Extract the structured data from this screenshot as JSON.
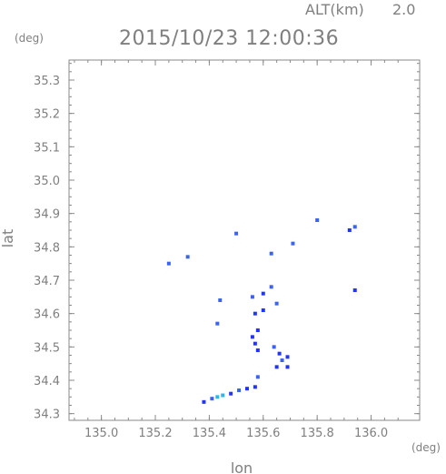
{
  "header": {
    "alt_label": "ALT(km)",
    "alt_value": "2.0",
    "datetime": "2015/10/23 12:00:36"
  },
  "chart_data": {
    "type": "scatter",
    "xlabel": "lon",
    "ylabel": "lat",
    "x_unit": "(deg)",
    "y_unit": "(deg)",
    "xlim": [
      134.88,
      136.18
    ],
    "ylim": [
      34.28,
      35.36
    ],
    "x_ticks": [
      "135.0",
      "135.2",
      "135.4",
      "135.6",
      "135.8",
      "136.0"
    ],
    "y_ticks": [
      "34.3",
      "34.4",
      "34.5",
      "34.6",
      "34.7",
      "34.8",
      "34.9",
      "35.0",
      "35.1",
      "35.2",
      "35.3"
    ],
    "grid": false,
    "colors": {
      "strong": "#2233ff",
      "medium": "#3b62f2",
      "light": "#2fb6e6"
    },
    "points": [
      {
        "x": 135.25,
        "y": 34.75,
        "v": "medium"
      },
      {
        "x": 135.32,
        "y": 34.77,
        "v": "medium"
      },
      {
        "x": 135.5,
        "y": 34.84,
        "v": "medium"
      },
      {
        "x": 135.63,
        "y": 34.78,
        "v": "medium"
      },
      {
        "x": 135.71,
        "y": 34.81,
        "v": "medium"
      },
      {
        "x": 135.8,
        "y": 34.88,
        "v": "medium"
      },
      {
        "x": 135.92,
        "y": 34.85,
        "v": "strong"
      },
      {
        "x": 135.94,
        "y": 34.86,
        "v": "medium"
      },
      {
        "x": 135.94,
        "y": 34.67,
        "v": "strong"
      },
      {
        "x": 135.44,
        "y": 34.64,
        "v": "medium"
      },
      {
        "x": 135.43,
        "y": 34.57,
        "v": "medium"
      },
      {
        "x": 135.56,
        "y": 34.65,
        "v": "medium"
      },
      {
        "x": 135.6,
        "y": 34.66,
        "v": "strong"
      },
      {
        "x": 135.63,
        "y": 34.68,
        "v": "medium"
      },
      {
        "x": 135.65,
        "y": 34.63,
        "v": "medium"
      },
      {
        "x": 135.57,
        "y": 34.6,
        "v": "strong"
      },
      {
        "x": 135.6,
        "y": 34.61,
        "v": "strong"
      },
      {
        "x": 135.58,
        "y": 34.55,
        "v": "strong"
      },
      {
        "x": 135.56,
        "y": 34.53,
        "v": "strong"
      },
      {
        "x": 135.57,
        "y": 34.51,
        "v": "strong"
      },
      {
        "x": 135.58,
        "y": 34.49,
        "v": "strong"
      },
      {
        "x": 135.64,
        "y": 34.5,
        "v": "medium"
      },
      {
        "x": 135.66,
        "y": 34.48,
        "v": "strong"
      },
      {
        "x": 135.69,
        "y": 34.47,
        "v": "strong"
      },
      {
        "x": 135.67,
        "y": 34.46,
        "v": "medium"
      },
      {
        "x": 135.65,
        "y": 34.44,
        "v": "strong"
      },
      {
        "x": 135.69,
        "y": 34.44,
        "v": "strong"
      },
      {
        "x": 135.58,
        "y": 34.41,
        "v": "medium"
      },
      {
        "x": 135.57,
        "y": 34.38,
        "v": "strong"
      },
      {
        "x": 135.54,
        "y": 34.375,
        "v": "strong"
      },
      {
        "x": 135.51,
        "y": 34.37,
        "v": "medium"
      },
      {
        "x": 135.48,
        "y": 34.36,
        "v": "strong"
      },
      {
        "x": 135.45,
        "y": 34.355,
        "v": "light"
      },
      {
        "x": 135.43,
        "y": 34.35,
        "v": "light"
      },
      {
        "x": 135.41,
        "y": 34.345,
        "v": "medium"
      },
      {
        "x": 135.38,
        "y": 34.335,
        "v": "strong"
      }
    ]
  }
}
